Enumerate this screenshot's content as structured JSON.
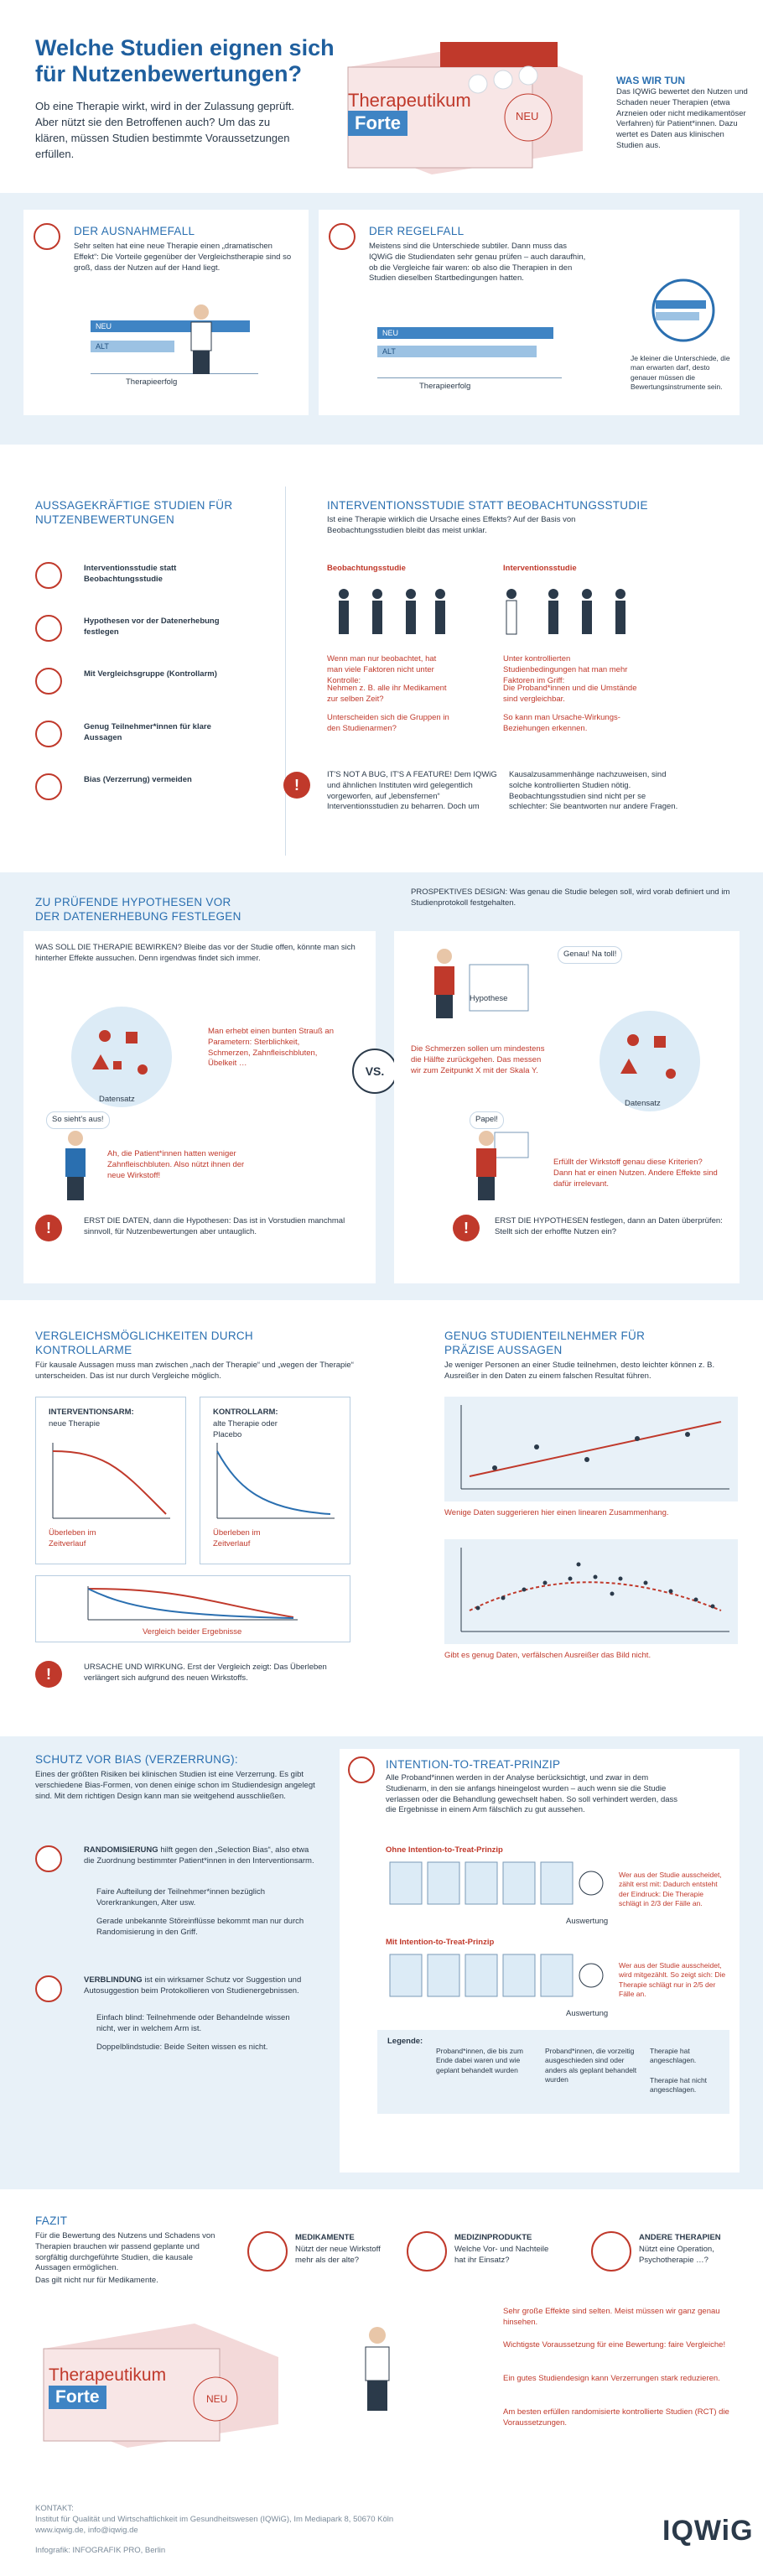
{
  "header": {
    "title": "Welche Studien eignen sich für Nutzenbewertungen?",
    "intro": "Ob eine Therapie wirkt, wird in der Zulassung geprüft. Aber nützt sie den Betroffenen auch? Um das zu klären, müssen Studien bestimmte Voraussetzungen erfüllen.",
    "pack_name": "Therapeutikum",
    "pack_brand": "Forte",
    "pack_badge": "NEU",
    "was_title": "WAS WIR TUN",
    "was_text": "Das IQWiG bewertet den Nutzen und Schaden neuer Therapien (etwa Arzneien oder nicht medikamentöser Verfahren) für Patient*innen. Dazu wertet es Daten aus klinischen Studien aus."
  },
  "ausnahme": {
    "title": "DER AUSNAHMEFALL",
    "text": "Sehr selten hat eine neue Therapie einen „dramatischen Effekt“: Die Vorteile gegenüber der Vergleichstherapie sind so groß, dass der Nutzen auf der Hand liegt.",
    "neu": "NEU",
    "alt": "ALT",
    "axis": "Therapieerfolg"
  },
  "regel": {
    "title": "DER REGELFALL",
    "text": "Meistens sind die Unterschiede subtiler. Dann muss das IQWiG die Studiendaten sehr genau prüfen – auch daraufhin, ob die Vergleiche fair waren: ob also die Therapien in den Studien dieselben Startbedingungen hatten.",
    "neu": "NEU",
    "alt": "ALT",
    "axis": "Therapieerfolg",
    "note": "Je kleiner die Unterschiede, die man erwarten darf, desto genauer müssen die Bewertungsinstrumente sein."
  },
  "aussage": {
    "title": "AUSSAGEKRÄFTIGE STUDIEN FÜR NUTZENBEWERTUNGEN",
    "items": [
      {
        "icon": "document-icon",
        "label": "Interventionsstudie statt Beobachtungsstudie"
      },
      {
        "icon": "hypothesis-icon",
        "label": "Hypothesen vor der Datenerhebung festlegen"
      },
      {
        "icon": "scales-icon",
        "label": "Mit Vergleichsgruppe (Kontrollarm)"
      },
      {
        "icon": "group-icon",
        "label": "Genug Teilnehmer*innen für klare Aussagen"
      },
      {
        "icon": "target-icon",
        "label": "Bias (Verzerrung) vermeiden"
      }
    ]
  },
  "intervention": {
    "title": "INTERVENTIONSSTUDIE STATT BEOBACHTUNGSSTUDIE",
    "lead": "Ist eine Therapie wirklich die Ursache eines Effekts? Auf der Basis von Beobachtungsstudien bleibt das meist unklar.",
    "beob_title": "Beobachtungsstudie",
    "beob_text": "Wenn man nur beobachtet, hat man viele Faktoren nicht unter Kontrolle:",
    "beob_b1": "Nehmen z. B. alle ihr Medikament zur selben Zeit?",
    "beob_b2": "Unterscheiden sich die Gruppen in den Studienarmen?",
    "int_title": "Interventionsstudie",
    "int_text": "Unter kontrollierten Studienbedingungen hat man mehr Faktoren im Griff:",
    "int_b1": "Die Proband*innen und die Umstände sind vergleichbar.",
    "int_b2": "So kann man Ursache-Wirkungs-Beziehungen erkennen.",
    "warn": "IT'S NOT A BUG, IT'S A FEATURE! Dem IQWiG und ähnlichen Instituten wird gelegentlich vorgeworfen, auf „lebensfernen“ Interventionsstudien zu beharren. Doch um Kausalzusammenhänge nachzuweisen, sind solche kontrollierten Studien nötig. Beobachtungsstudien sind nicht per se schlechter: Sie beantworten nur andere Fragen."
  },
  "hypo": {
    "title": "ZU PRÜFENDE HYPOTHESEN VOR DER DATENERHEBUNG FESTLEGEN",
    "left_text": "WAS SOLL DIE THERAPIE BEWIRKEN? Bleibe das vor der Studie offen, könnte man sich hinterher Effekte aussuchen. Denn irgendwas findet sich immer.",
    "left_note": "Man erhebt einen bunten Strauß an Parametern: Sterblichkeit, Schmerzen, Zahnfleischbluten, Übelkeit …",
    "left_bubble": "So sieht's aus!",
    "left_quote": "Ah, die Patient*innen hatten weniger Zahnfleischbluten. Also nützt ihnen der neue Wirkstoff!",
    "daten": "Datensatz",
    "left_warn": "ERST DIE DATEN, dann die Hypothesen: Das ist in Vorstudien manchmal sinnvoll, für Nutzenbewertungen aber untauglich.",
    "vs": "VS.",
    "right_title": "PROSPEKTIVES DESIGN: Was genau die Studie belegen soll, wird vorab definiert und im Studienprotokoll festgehalten.",
    "right_note": "Die Schmerzen sollen um mindestens die Hälfte zurückgehen. Das messen wir zum Zeitpunkt X mit der Skala Y.",
    "right_bubble": "Genau! Na toll!",
    "hypothese": "Hypothese",
    "right_quote": "Erfüllt der Wirkstoff genau diese Kriterien? Dann hat er einen Nutzen. Andere Effekte sind dafür irrelevant.",
    "papel": "Papel!",
    "right_warn": "ERST DIE HYPOTHESEN festlegen, dann an Daten überprüfen: Stellt sich der erhoffte Nutzen ein?"
  },
  "vergleich": {
    "title": "VERGLEICHSMÖGLICHKEITEN DURCH KONTROLLARME",
    "lead": "Für kausale Aussagen muss man zwischen „nach der Therapie“ und „wegen der Therapie“ unterscheiden. Das ist nur durch Vergleiche möglich.",
    "int_label": "INTERVENTIONSARM:",
    "int_sub": "neue Therapie",
    "int_curve": "Überleben im Zeitverlauf",
    "ctrl_label": "KONTROLLARM:",
    "ctrl_sub": "alte Therapie oder Placebo",
    "ctrl_curve": "Überleben im Zeitverlauf",
    "combined": "Vergleich beider Ergebnisse",
    "warn": "URSACHE UND WIRKUNG. Erst der Vergleich zeigt: Das Überleben verlängert sich aufgrund des neuen Wirkstoffs."
  },
  "teilnehmer": {
    "title": "GENUG STUDIENTEILNEHMER FÜR PRÄZISE AUSSAGEN",
    "lead": "Je weniger Personen an einer Studie teilnehmen, desto leichter können z. B. Ausreißer in den Daten zu einem falschen Resultat führen.",
    "cap1": "Wenige Daten suggerieren hier einen linearen Zusammenhang.",
    "cap2": "Gibt es genug Daten, verfälschen Ausreißer das Bild nicht."
  },
  "bias": {
    "title": "SCHUTZ VOR BIAS (VERZERRUNG):",
    "lead": "Eines der größten Risiken bei klinischen Studien ist eine Verzerrung. Es gibt verschiedene Bias-Formen, von denen einige schon im Studiendesign angelegt sind. Mit dem richtigen Design kann man sie weitgehend ausschließen.",
    "rand_title": "RANDOMISIERUNG",
    "rand_text": "hilft gegen den „Selection Bias“, also etwa die Zuordnung bestimmter Patient*innen in den Interventionsarm.",
    "rand_b1": "Faire Aufteilung der Teilnehmer*innen bezüglich Vorerkrankungen, Alter usw.",
    "rand_b2": "Gerade unbekannte Störeinflüsse bekommt man nur durch Randomisierung in den Griff.",
    "blind_title": "VERBLINDUNG",
    "blind_text": "ist ein wirksamer Schutz vor Suggestion und Autosuggestion beim Protokollieren von Studienergebnissen.",
    "blind_b1": "Einfach blind: Teilnehmende oder Behandelnde wissen nicht, wer in welchem Arm ist.",
    "blind_b2": "Doppelblindstudie: Beide Seiten wissen es nicht."
  },
  "itt": {
    "title": "INTENTION-TO-TREAT-PRINZIP",
    "lead": "Alle Proband*innen werden in der Analyse berücksichtigt, und zwar in dem Studienarm, in den sie anfangs hineingelost wurden – auch wenn sie die Studie verlassen oder die Behandlung gewechselt haben. So soll verhindert werden, dass die Ergebnisse in einem Arm fälschlich zu gut aussehen.",
    "ohne": "Ohne Intention-to-Treat-Prinzip",
    "ohne_note": "Wer aus der Studie ausscheidet, zählt erst mit: Dadurch entsteht der Eindruck: Die Therapie schlägt in 2/3 der Fälle an.",
    "mit": "Mit Intention-to-Treat-Prinzip",
    "mit_note": "Wer aus der Studie ausscheidet, wird mitgezählt. So zeigt sich: Die Therapie schlägt nur in 2/5 der Fälle an.",
    "auswertung": "Auswertung",
    "legend": "Legende:",
    "lg1": "Proband*innen, die bis zum Ende dabei waren und wie geplant behandelt wurden",
    "lg2": "Proband*innen, die vorzeitig ausgeschieden sind oder anders als geplant behandelt wurden",
    "lg3": "Therapie hat angeschlagen.",
    "lg4": "Therapie hat nicht angeschlagen."
  },
  "fazit": {
    "title": "FAZIT",
    "text": "Für die Bewertung des Nutzens und Schadens von Therapien brauchen wir passend geplante und sorgfältig durchgeführte Studien, die kausale Aussagen ermöglichen.",
    "text2": "Das gilt nicht nur für Medikamente.",
    "c1_title": "MEDIKAMENTE",
    "c1_text": "Nützt der neue Wirkstoff mehr als der alte?",
    "c2_title": "MEDIZINPRODUKTE",
    "c2_text": "Welche Vor- und Nachteile hat ihr Einsatz?",
    "c3_title": "ANDERE THERAPIEN",
    "c3_text": "Nützt eine Operation, Psychotherapie …?",
    "bullets": [
      "Sehr große Effekte sind selten. Meist müssen wir ganz genau hinsehen.",
      "Wichtigste Voraussetzung für eine Bewertung: faire Vergleiche!",
      "Ein gutes Studiendesign kann Verzerrungen stark reduzieren.",
      "Am besten erfüllen randomisierte kontrollierte Studien (RCT) die Voraussetzungen."
    ]
  },
  "footer": {
    "kontakt": "KONTAKT:",
    "line1": "Institut für Qualität und Wirtschaftlichkeit im Gesundheitswesen (IQWiG), Im Mediapark 8, 50670 Köln",
    "line2": "www.iqwig.de, info@iqwig.de",
    "credit": "Infografik: INFOGRAFIK PRO, Berlin",
    "logo": "IQWiG"
  },
  "colors": {
    "blue": "#2a6fb0",
    "red": "#c0392b",
    "light": "#e8f1f8"
  }
}
